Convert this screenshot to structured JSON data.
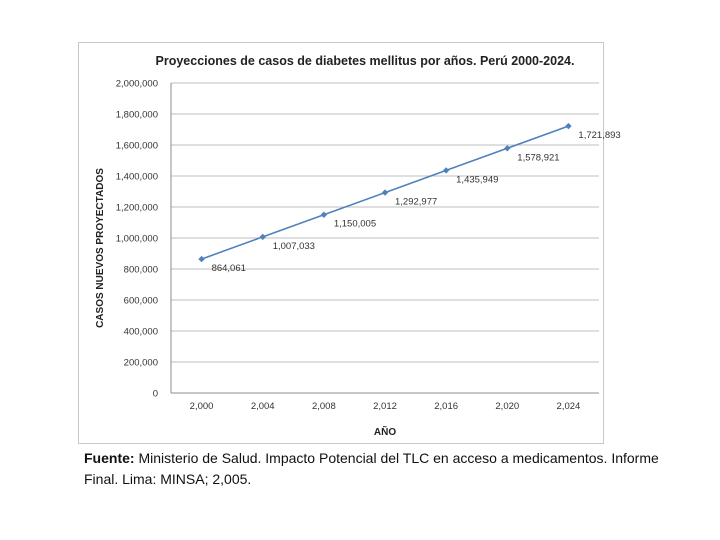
{
  "chart_data": {
    "type": "line",
    "title": "Proyecciones de casos de diabetes mellitus por años. Perú 2000-2024.",
    "xlabel": "AÑO",
    "ylabel": "CASOS NUEVOS PROYECTADOS",
    "x": [
      2000,
      2004,
      2008,
      2012,
      2016,
      2020,
      2024
    ],
    "x_tick_labels": [
      "2,000",
      "2,004",
      "2,008",
      "2,012",
      "2,016",
      "2,020",
      "2,024"
    ],
    "series": [
      {
        "values": [
          864061,
          1007033,
          1150005,
          1292977,
          1435949,
          1578921,
          1721893
        ],
        "data_labels": [
          "864,061",
          "1,007,033",
          "1,150,005",
          "1,292,977",
          "1,435,949",
          "1,578,921",
          "1,721,893"
        ]
      }
    ],
    "ylim": [
      0,
      2000000
    ],
    "y_ticks": [
      0,
      200000,
      400000,
      600000,
      800000,
      1000000,
      1200000,
      1400000,
      1600000,
      1800000,
      2000000
    ],
    "y_tick_labels": [
      "0",
      "200,000",
      "400,000",
      "600,000",
      "800,000",
      "1,000,000",
      "1,200,000",
      "1,400,000",
      "1,600,000",
      "1,800,000",
      "2,000,000"
    ],
    "grid": true,
    "legend": "none",
    "colors": {
      "line": "#4f81bd",
      "marker": "#4f81bd",
      "grid": "#bfbfbf"
    }
  },
  "footer": {
    "label": "Fuente:",
    "text": " Ministerio de Salud. Impacto Potencial del TLC en acceso a medicamentos. Informe Final. Lima: MINSA; 2,005."
  }
}
